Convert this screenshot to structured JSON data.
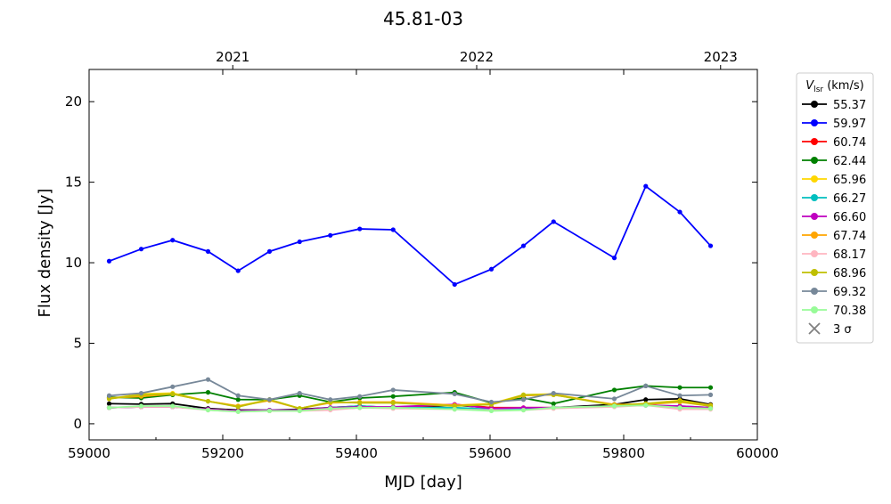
{
  "chart_data": {
    "type": "line",
    "title": "45.81-03",
    "xlabel": "MJD [day]",
    "ylabel": "Flux density [Jy]",
    "xlim": [
      59000,
      60000
    ],
    "ylim": [
      -1,
      22
    ],
    "xticks": [
      59000,
      59200,
      59400,
      59600,
      59800,
      60000
    ],
    "yticks": [
      0,
      5,
      10,
      15,
      20
    ],
    "top_axis": {
      "ticks": [
        {
          "label": "2021",
          "mjd": 59215
        },
        {
          "label": "2022",
          "mjd": 59580
        },
        {
          "label": "2023",
          "mjd": 59945
        }
      ]
    },
    "grid": false,
    "legend": {
      "title": "V",
      "title_sub": "lsr",
      "title_unit": " (km/s)",
      "placement": "outside-right",
      "extra_entry": {
        "label": "3 σ",
        "color": "#808080"
      }
    },
    "x": [
      59030,
      59078,
      59125,
      59178,
      59223,
      59270,
      59315,
      59361,
      59405,
      59455,
      59547,
      59602,
      59650,
      59695,
      59786,
      59833,
      59884,
      59930
    ],
    "series": [
      {
        "name": "55.37",
        "color": "#000000",
        "values": [
          1.25,
          1.22,
          1.25,
          0.95,
          0.85,
          0.85,
          0.9,
          1.0,
          1.1,
          1.0,
          1.15,
          1.0,
          0.95,
          1.0,
          1.2,
          1.5,
          1.55,
          1.2
        ]
      },
      {
        "name": "59.97",
        "color": "#0000ff",
        "values": [
          10.1,
          10.85,
          11.4,
          10.7,
          9.5,
          10.7,
          11.3,
          11.7,
          12.1,
          12.05,
          8.65,
          9.6,
          11.05,
          12.55,
          10.3,
          14.75,
          13.15,
          11.05
        ]
      },
      {
        "name": "60.74",
        "color": "#ff0000",
        "values": [
          1.0,
          1.05,
          1.05,
          0.9,
          0.8,
          0.8,
          0.85,
          0.9,
          1.0,
          1.0,
          1.2,
          1.0,
          1.0,
          1.0,
          1.1,
          1.2,
          1.0,
          0.95
        ]
      },
      {
        "name": "62.44",
        "color": "#008000",
        "values": [
          1.65,
          1.6,
          1.8,
          1.95,
          1.5,
          1.5,
          1.75,
          1.35,
          1.6,
          1.7,
          1.95,
          1.3,
          1.6,
          1.25,
          2.1,
          2.35,
          2.25,
          2.25
        ]
      },
      {
        "name": "65.96",
        "color": "#ffd700",
        "values": [
          1.55,
          1.85,
          1.9,
          1.4,
          1.1,
          1.5,
          0.95,
          1.35,
          1.3,
          1.3,
          1.15,
          1.25,
          1.8,
          1.85,
          1.15,
          1.25,
          1.45,
          1.15
        ]
      },
      {
        "name": "66.27",
        "color": "#00bfbf",
        "values": [
          1.0,
          1.05,
          1.05,
          0.9,
          0.8,
          0.85,
          0.85,
          1.0,
          1.1,
          1.0,
          1.0,
          0.9,
          0.95,
          1.0,
          1.1,
          1.15,
          1.1,
          1.0
        ]
      },
      {
        "name": "66.60",
        "color": "#bf00bf",
        "values": [
          1.0,
          1.05,
          1.05,
          0.9,
          0.8,
          0.85,
          0.85,
          1.0,
          1.05,
          1.05,
          1.2,
          0.95,
          1.0,
          1.0,
          1.1,
          1.15,
          1.1,
          1.0
        ]
      },
      {
        "name": "67.74",
        "color": "#ffa500",
        "values": [
          1.6,
          1.7,
          1.85,
          1.4,
          1.1,
          1.45,
          0.95,
          1.3,
          1.35,
          1.35,
          1.15,
          1.2,
          1.75,
          1.8,
          1.2,
          1.2,
          1.35,
          1.1
        ]
      },
      {
        "name": "68.17",
        "color": "#ffb6c1",
        "values": [
          1.0,
          1.05,
          1.05,
          0.85,
          0.75,
          0.8,
          0.8,
          0.85,
          1.0,
          0.95,
          0.9,
          0.85,
          0.85,
          0.95,
          1.05,
          1.15,
          0.9,
          0.9
        ]
      },
      {
        "name": "68.96",
        "color": "#bfbf00",
        "values": [
          1.55,
          1.8,
          1.85,
          1.4,
          1.05,
          1.5,
          0.95,
          1.35,
          1.3,
          1.3,
          1.1,
          1.2,
          1.8,
          1.8,
          1.15,
          1.25,
          1.4,
          1.1
        ]
      },
      {
        "name": "69.32",
        "color": "#778899",
        "values": [
          1.75,
          1.9,
          2.3,
          2.75,
          1.75,
          1.5,
          1.9,
          1.5,
          1.7,
          2.1,
          1.85,
          1.35,
          1.5,
          1.9,
          1.55,
          2.35,
          1.75,
          1.8
        ]
      },
      {
        "name": "70.38",
        "color": "#98fb98",
        "values": [
          1.0,
          1.1,
          1.1,
          0.85,
          0.75,
          0.8,
          0.8,
          0.95,
          1.0,
          1.0,
          0.9,
          0.8,
          0.85,
          1.0,
          1.1,
          1.15,
          1.0,
          0.95
        ]
      }
    ]
  }
}
